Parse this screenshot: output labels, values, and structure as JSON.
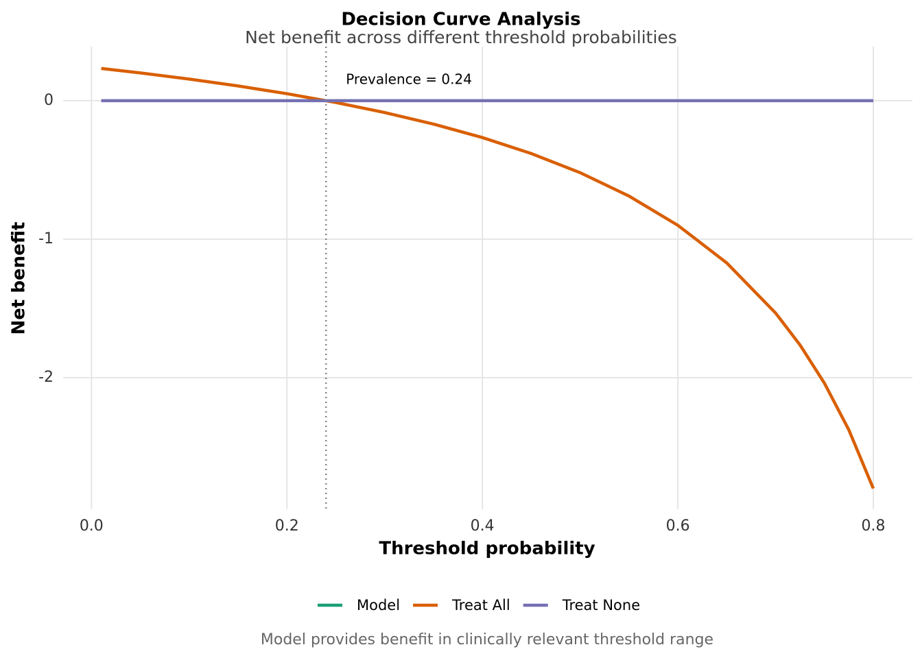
{
  "chart_data": {
    "type": "line",
    "title": "Decision Curve Analysis",
    "subtitle": "Net benefit across different threshold probabilities",
    "x_label": "Threshold probability",
    "y_label": "Net benefit",
    "caption": "Model provides benefit in clinically relevant threshold range",
    "x": [
      0.01,
      0.05,
      0.1,
      0.15,
      0.2,
      0.25,
      0.3,
      0.35,
      0.4,
      0.45,
      0.5,
      0.55,
      0.6,
      0.65,
      0.7,
      0.725,
      0.75,
      0.775,
      0.8
    ],
    "series": [
      {
        "name": "Model",
        "color": "#1b9e77",
        "values": [
          null,
          null,
          null,
          null,
          null,
          null,
          null,
          null,
          null,
          null,
          null,
          null,
          null,
          null,
          null,
          null,
          null,
          null,
          null
        ]
      },
      {
        "name": "Treat All",
        "color": "#d95f02",
        "values": [
          0.2323,
          0.2,
          0.1556,
          0.1059,
          0.05,
          -0.0133,
          -0.0857,
          -0.1692,
          -0.2667,
          -0.3818,
          -0.52,
          -0.6889,
          -0.9,
          -1.1714,
          -1.5333,
          -1.7636,
          -2.04,
          -2.3778,
          -2.8
        ]
      },
      {
        "name": "Treat None",
        "color": "#7570b3",
        "values": [
          0,
          0,
          0,
          0,
          0,
          0,
          0,
          0,
          0,
          0,
          0,
          0,
          0,
          0,
          0,
          0,
          0,
          0,
          0
        ]
      }
    ],
    "prevalence_line": {
      "x": 0.24,
      "label": "Prevalence = 0.24"
    },
    "xlim": [
      -0.029,
      0.84
    ],
    "ylim": [
      -2.95,
      0.39
    ],
    "xticks": [
      {
        "value": 0,
        "label": "0.0"
      },
      0.2,
      0.4,
      0.6,
      0.8
    ],
    "yticks": [
      0,
      -1,
      -2
    ],
    "grid": true,
    "legend": "bottom"
  }
}
